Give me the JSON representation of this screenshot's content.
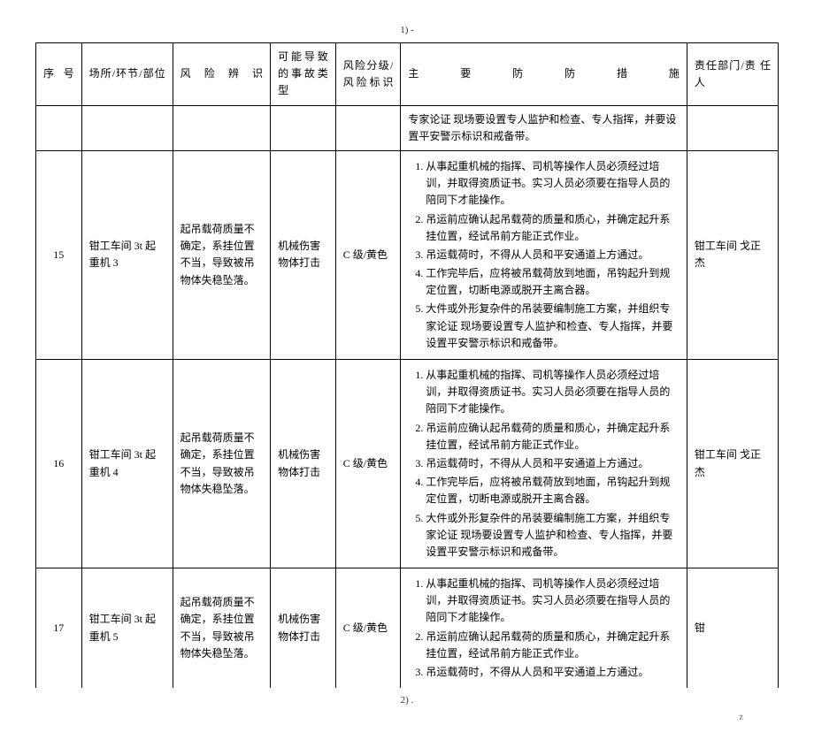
{
  "pagenum_top": "1)    -",
  "pagenum_bottom": "2)    .",
  "footer_mark": "z",
  "headers": {
    "seq": "序 号",
    "loc": "场所/环节/部位",
    "risk": "风 险 辨 识",
    "type": "可能导致的事故类型",
    "level": "风险分级/风险标识",
    "measure": "主 要 防 防 措 施",
    "resp": "责任部门/责 任 人"
  },
  "truncated_row": {
    "measure": "专家论证 现场要设置专人监护和检查、专人指挥，并要设置平安警示标识和戒备带。"
  },
  "rows": [
    {
      "seq": "15",
      "loc": "钳工车间 3t 起重机 3",
      "risk": "起吊载荷质量不确定，系挂位置不当，导致被吊物体失稳坠落。",
      "type": "机械伤害 物体打击",
      "level": "C 级/黄色",
      "measures": [
        "从事起重机械的指挥、司机等操作人员必须经过培训，并取得资质证书。实习人员必须要在指导人员的陪同下才能操作。",
        "吊运前应确认起吊载荷的质量和质心，并确定起升系挂位置，经试吊前方能正式作业。",
        "吊运载荷时，不得从人员和平安通道上方通过。",
        "工作完毕后，应将被吊载荷放到地面，吊钩起升到规定位置，切断电源或脱开主离合器。",
        "大件或外形复杂件的吊装要编制施工方案，并组织专家论证 现场要设置专人监护和检查、专人指挥，并要设置平安警示标识和戒备带。"
      ],
      "resp": "钳工车间 戈正杰"
    },
    {
      "seq": "16",
      "loc": "钳工车间 3t 起重机 4",
      "risk": "起吊载荷质量不确定，系挂位置不当，导致被吊物体失稳坠落。",
      "type": "机械伤害 物体打击",
      "level": "C 级/黄色",
      "measures": [
        "从事起重机械的指挥、司机等操作人员必须经过培训，并取得资质证书。实习人员必须要在指导人员的陪同下才能操作。",
        "吊运前应确认起吊载荷的质量和质心，并确定起升系挂位置，经试吊前方能正式作业。",
        "吊运载荷时，不得从人员和平安通道上方通过。",
        "工作完毕后，应将被吊载荷放到地面，吊钩起升到规定位置，切断电源或脱开主离合器。",
        "大件或外形复杂件的吊装要编制施工方案，并组织专家论证 现场要设置专人监护和检查、专人指挥，并要设置平安警示标识和戒备带。"
      ],
      "resp": "钳工车间 戈正杰"
    },
    {
      "seq": "17",
      "loc": "钳工车间 3t 起重机 5",
      "risk": "起吊载荷质量不确定，系挂位置不当，导致被吊物体失稳坠落。",
      "type": "机械伤害 物体打击",
      "level": "C 级/黄色",
      "measures": [
        "从事起重机械的指挥、司机等操作人员必须经过培训，并取得资质证书。实习人员必须要在指导人员的陪同下才能操作。",
        "吊运前应确认起吊载荷的质量和质心，并确定起升系挂位置，经试吊前方能正式作业。",
        "吊运载荷时，不得从人员和平安通道上方通过。"
      ],
      "resp": "钳",
      "partial_bottom": true
    }
  ]
}
